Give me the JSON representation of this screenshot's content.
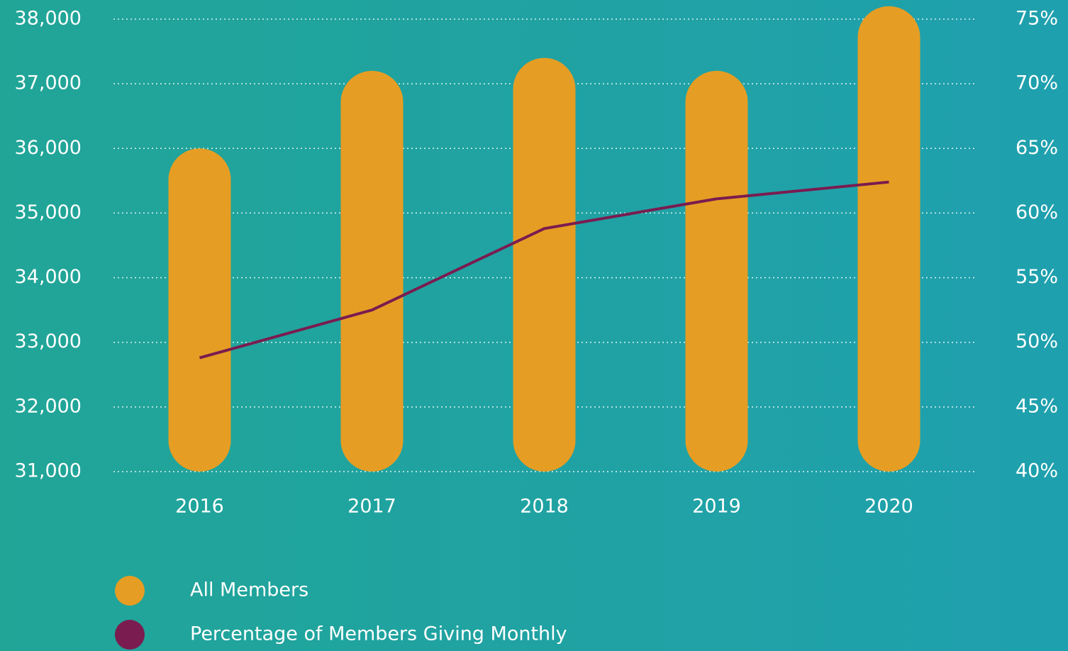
{
  "chart_data": {
    "type": "bar-line",
    "categories": [
      "2016",
      "2017",
      "2018",
      "2019",
      "2020"
    ],
    "series": [
      {
        "name": "All Members",
        "color": "#e69d23",
        "values": [
          36000,
          37200,
          37400,
          37200,
          38200
        ]
      },
      {
        "name": "Percentage of Members Giving Monthly",
        "color": "#7a1c50",
        "axis": "y2",
        "values": [
          48.8,
          52.5,
          58.8,
          61.1,
          62.4
        ]
      }
    ],
    "ylim": [
      31000,
      38000
    ],
    "yticks": [
      {
        "value": 31000,
        "label": "31,000"
      },
      {
        "value": 32000,
        "label": "32,000"
      },
      {
        "value": 33000,
        "label": "33,000"
      },
      {
        "value": 34000,
        "label": "34,000"
      },
      {
        "value": 35000,
        "label": "35,000"
      },
      {
        "value": 36000,
        "label": "36,000"
      },
      {
        "value": 37000,
        "label": "37,000"
      },
      {
        "value": 38000,
        "label": "38,000"
      }
    ],
    "y2lim": [
      40,
      75
    ],
    "y2ticks": [
      {
        "value": 40,
        "label": "40%"
      },
      {
        "value": 45,
        "label": "45%"
      },
      {
        "value": 50,
        "label": "50%"
      },
      {
        "value": 55,
        "label": "55%"
      },
      {
        "value": 60,
        "label": "60%"
      },
      {
        "value": 65,
        "label": "65%"
      },
      {
        "value": 70,
        "label": "70%"
      },
      {
        "value": 75,
        "label": "75%"
      }
    ],
    "grid": true
  }
}
